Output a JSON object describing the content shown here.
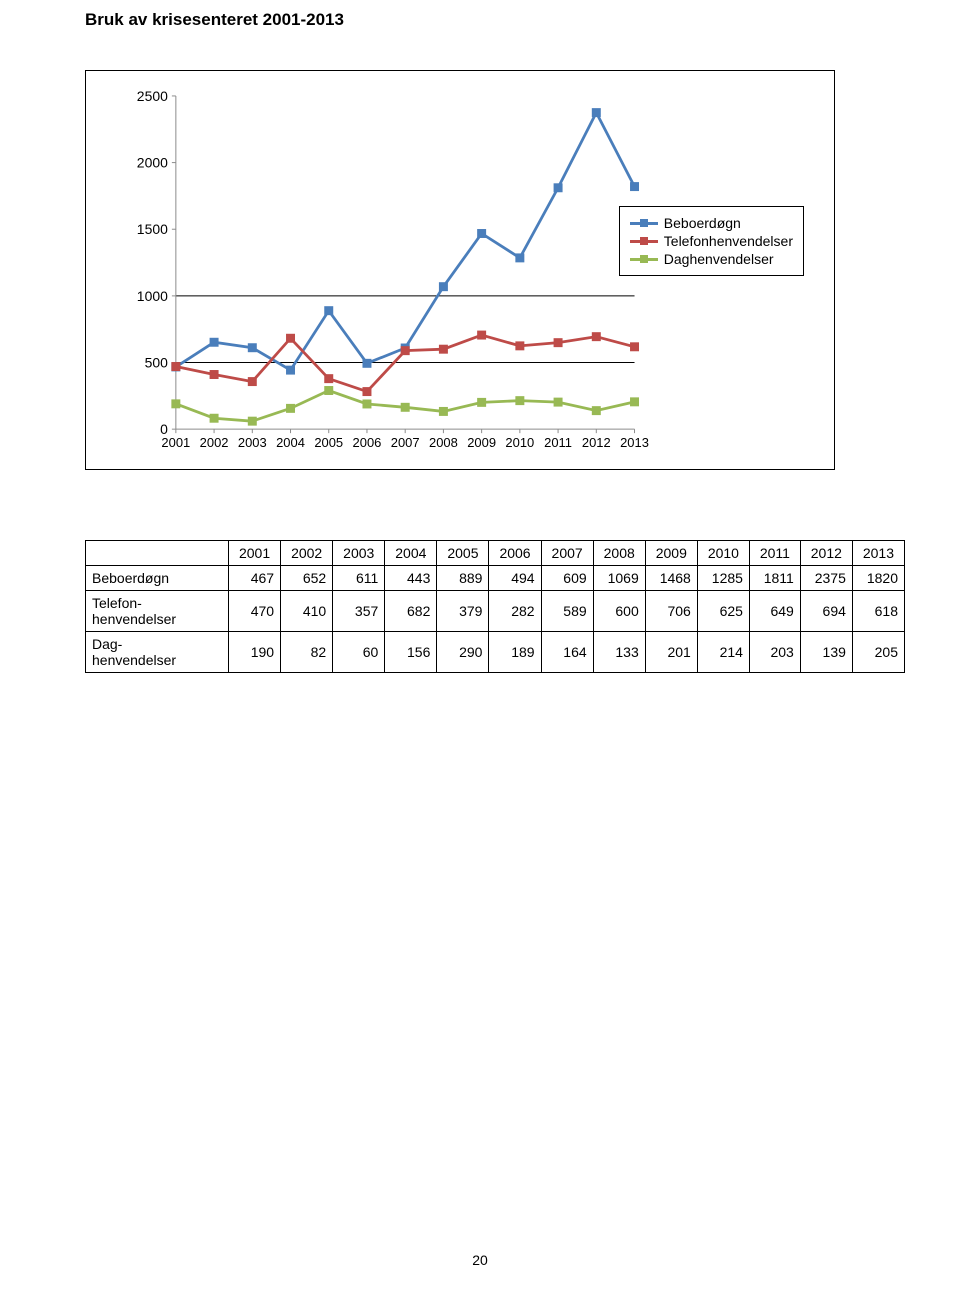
{
  "title": "Bruk av krisesenteret 2001-2013",
  "page_number": "20",
  "chart": {
    "type": "line",
    "categories": [
      "2001",
      "2002",
      "2003",
      "2004",
      "2005",
      "2006",
      "2007",
      "2008",
      "2009",
      "2010",
      "2011",
      "2012",
      "2013"
    ],
    "y_ticks": [
      0,
      500,
      1000,
      1500,
      2000,
      2500
    ],
    "ylim": [
      0,
      2500
    ],
    "background": "#ffffff",
    "gridline_color": "#000000",
    "axis_color": "#8c8c8c",
    "axis_font_size": 14,
    "series": [
      {
        "name": "Beboerdøgn",
        "color": "#4a7ebb",
        "marker": "square",
        "values": [
          467,
          652,
          611,
          443,
          889,
          494,
          609,
          1069,
          1468,
          1285,
          1811,
          2375,
          1820
        ]
      },
      {
        "name": "Telefonhenvendelser",
        "color": "#be4b48",
        "marker": "square",
        "values": [
          470,
          410,
          357,
          682,
          379,
          282,
          589,
          600,
          706,
          625,
          649,
          694,
          618
        ]
      },
      {
        "name": "Daghenvendelser",
        "color": "#98b954",
        "marker": "square",
        "values": [
          190,
          82,
          60,
          156,
          290,
          189,
          164,
          133,
          201,
          214,
          203,
          139,
          205
        ]
      }
    ],
    "legend": {
      "items": [
        "Beboerdøgn",
        "Telefonhenvendelser",
        "Daghenvendelser"
      ]
    }
  },
  "table": {
    "columns": [
      "",
      "2001",
      "2002",
      "2003",
      "2004",
      "2005",
      "2006",
      "2007",
      "2008",
      "2009",
      "2010",
      "2011",
      "2012",
      "2013"
    ],
    "rows": [
      {
        "label": "Beboerdøgn",
        "values": [
          "467",
          "652",
          "611",
          "443",
          "889",
          "494",
          "609",
          "1069",
          "1468",
          "1285",
          "1811",
          "2375",
          "1820"
        ]
      },
      {
        "label": "Telefon-\nhenvendelser",
        "values": [
          "470",
          "410",
          "357",
          "682",
          "379",
          "282",
          "589",
          "600",
          "706",
          "625",
          "649",
          "694",
          "618"
        ]
      },
      {
        "label": "Dag-\nhenvendelser",
        "values": [
          "190",
          "82",
          "60",
          "156",
          "290",
          "189",
          "164",
          "133",
          "201",
          "214",
          "203",
          "139",
          "205"
        ]
      }
    ]
  }
}
